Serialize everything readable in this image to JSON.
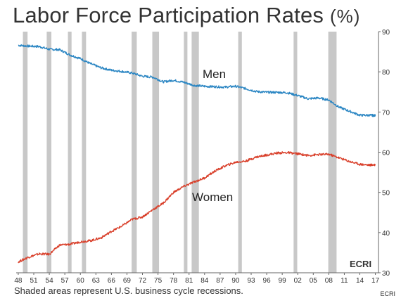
{
  "title": "Labor Force Participation Rates",
  "title_unit": "(%)",
  "footnote": "Shaded areas represent U.S. business cycle recessions.",
  "source": "ECRI",
  "logo_text": "ECRI",
  "colors": {
    "men": "#2b86c3",
    "women": "#d9402b",
    "recession": "#c8c8c8",
    "axis": "#666666"
  },
  "chart_data": {
    "type": "line",
    "title": "Labor Force Participation Rates (%)",
    "xlabel": "",
    "ylabel": "",
    "xlim": [
      1947.6,
      2017.6
    ],
    "ylim": [
      30,
      90
    ],
    "x_ticks": [
      "48",
      "51",
      "54",
      "57",
      "60",
      "63",
      "66",
      "69",
      "72",
      "75",
      "78",
      "81",
      "84",
      "87",
      "90",
      "93",
      "96",
      "99",
      "02",
      "05",
      "08",
      "11",
      "14",
      "17"
    ],
    "y_ticks": [
      30,
      40,
      50,
      60,
      70,
      80,
      90
    ],
    "grid": false,
    "recessions": [
      [
        1948.9,
        1949.8
      ],
      [
        1953.5,
        1954.4
      ],
      [
        1957.6,
        1958.3
      ],
      [
        1960.3,
        1961.1
      ],
      [
        1969.9,
        1970.9
      ],
      [
        1973.9,
        1975.2
      ],
      [
        1980.0,
        1980.5
      ],
      [
        1981.5,
        1982.9
      ],
      [
        1990.5,
        1991.2
      ],
      [
        2001.2,
        2001.9
      ],
      [
        2007.9,
        2009.5
      ]
    ],
    "series": [
      {
        "name": "Men",
        "x": [
          1948,
          1950,
          1952,
          1954,
          1956,
          1958,
          1960,
          1962,
          1964,
          1966,
          1968,
          1970,
          1972,
          1974,
          1976,
          1978,
          1980,
          1982,
          1984,
          1986,
          1988,
          1990,
          1992,
          1994,
          1996,
          1998,
          2000,
          2002,
          2004,
          2006,
          2008,
          2010,
          2012,
          2014,
          2016,
          2017
        ],
        "values": [
          86.6,
          86.4,
          86.3,
          85.6,
          85.5,
          84.2,
          83.3,
          82.0,
          81.0,
          80.4,
          80.1,
          79.7,
          78.9,
          78.7,
          77.5,
          77.9,
          77.4,
          76.6,
          76.4,
          76.3,
          76.2,
          76.4,
          75.8,
          75.1,
          74.9,
          74.9,
          74.8,
          74.1,
          73.3,
          73.5,
          73.0,
          71.2,
          70.2,
          69.2,
          69.2,
          69.1
        ]
      },
      {
        "name": "Women",
        "x": [
          1948,
          1950,
          1952,
          1954,
          1956,
          1958,
          1960,
          1962,
          1964,
          1966,
          1968,
          1970,
          1972,
          1974,
          1976,
          1978,
          1980,
          1982,
          1984,
          1986,
          1988,
          1990,
          1992,
          1994,
          1996,
          1998,
          2000,
          2002,
          2004,
          2006,
          2008,
          2010,
          2012,
          2014,
          2016,
          2017
        ],
        "values": [
          32.7,
          33.9,
          34.7,
          34.6,
          36.9,
          37.1,
          37.7,
          38.0,
          38.7,
          40.3,
          41.6,
          43.3,
          43.9,
          45.7,
          47.3,
          50.0,
          51.5,
          52.6,
          53.6,
          55.3,
          56.6,
          57.5,
          57.8,
          58.8,
          59.3,
          59.8,
          59.9,
          59.6,
          59.2,
          59.4,
          59.5,
          58.6,
          57.7,
          57.0,
          56.8,
          56.9
        ]
      }
    ],
    "annotations": [
      "Men",
      "Women"
    ]
  }
}
